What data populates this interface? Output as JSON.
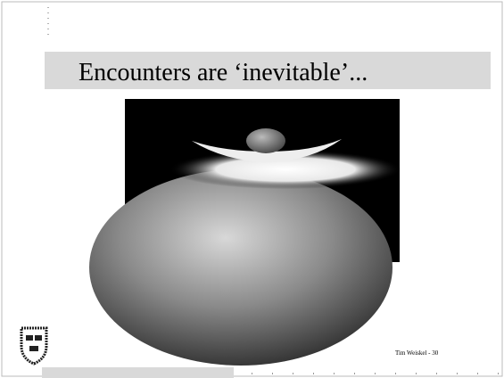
{
  "slide": {
    "title": "Encounters are ‘inevitable’...",
    "footer": "Tim Weiskel - 30"
  }
}
